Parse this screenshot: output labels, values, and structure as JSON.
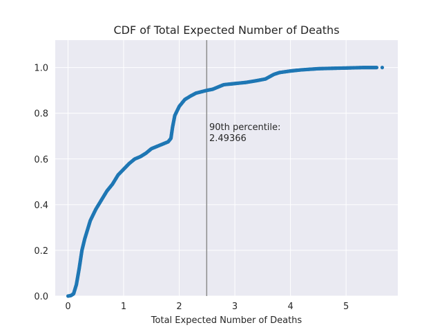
{
  "chart_data": {
    "type": "scatter",
    "title": "CDF of Total Expected Number of Deaths",
    "xlabel": "Total Expected Number of Deaths",
    "ylabel": "",
    "xlim": [
      -0.23,
      5.93
    ],
    "ylim": [
      0,
      1.12
    ],
    "x_ticks": [
      0,
      1,
      2,
      3,
      4,
      5
    ],
    "y_ticks": [
      0.0,
      0.2,
      0.4,
      0.6,
      0.8,
      1.0
    ],
    "x_tick_labels": [
      "0",
      "1",
      "2",
      "3",
      "4",
      "5"
    ],
    "y_tick_labels": [
      "0.0",
      "0.2",
      "0.4",
      "0.6",
      "0.8",
      "1.0"
    ],
    "grid": true,
    "background_color": "#eaeaf2",
    "grid_color": "#ffffff",
    "series": [
      {
        "color": "#1f77b4",
        "curve_points": [
          [
            0.0,
            0.0
          ],
          [
            0.05,
            0.002
          ],
          [
            0.1,
            0.01
          ],
          [
            0.15,
            0.05
          ],
          [
            0.2,
            0.12
          ],
          [
            0.25,
            0.2
          ],
          [
            0.3,
            0.25
          ],
          [
            0.35,
            0.29
          ],
          [
            0.4,
            0.33
          ],
          [
            0.5,
            0.38
          ],
          [
            0.6,
            0.42
          ],
          [
            0.7,
            0.46
          ],
          [
            0.8,
            0.49
          ],
          [
            0.9,
            0.53
          ],
          [
            1.0,
            0.555
          ],
          [
            1.1,
            0.58
          ],
          [
            1.2,
            0.6
          ],
          [
            1.3,
            0.61
          ],
          [
            1.4,
            0.625
          ],
          [
            1.5,
            0.645
          ],
          [
            1.6,
            0.655
          ],
          [
            1.7,
            0.665
          ],
          [
            1.8,
            0.675
          ],
          [
            1.85,
            0.69
          ],
          [
            1.88,
            0.74
          ],
          [
            1.92,
            0.79
          ],
          [
            2.0,
            0.83
          ],
          [
            2.1,
            0.86
          ],
          [
            2.2,
            0.875
          ],
          [
            2.3,
            0.888
          ],
          [
            2.49366,
            0.9
          ],
          [
            2.6,
            0.905
          ],
          [
            2.7,
            0.915
          ],
          [
            2.8,
            0.925
          ],
          [
            3.0,
            0.93
          ],
          [
            3.2,
            0.935
          ],
          [
            3.4,
            0.943
          ],
          [
            3.55,
            0.95
          ],
          [
            3.7,
            0.97
          ],
          [
            3.8,
            0.978
          ],
          [
            4.0,
            0.985
          ],
          [
            4.2,
            0.99
          ],
          [
            4.5,
            0.995
          ],
          [
            4.8,
            0.997
          ],
          [
            5.0,
            0.998
          ],
          [
            5.3,
            1.0
          ],
          [
            5.45,
            1.0
          ],
          [
            5.55,
            1.0
          ]
        ],
        "outliers": [
          [
            5.65,
            1.0
          ]
        ]
      }
    ],
    "vline": {
      "x": 2.49366,
      "color": "#8c8c8c",
      "label_line1": "90th percentile:",
      "label_line2": "2.49366"
    }
  }
}
